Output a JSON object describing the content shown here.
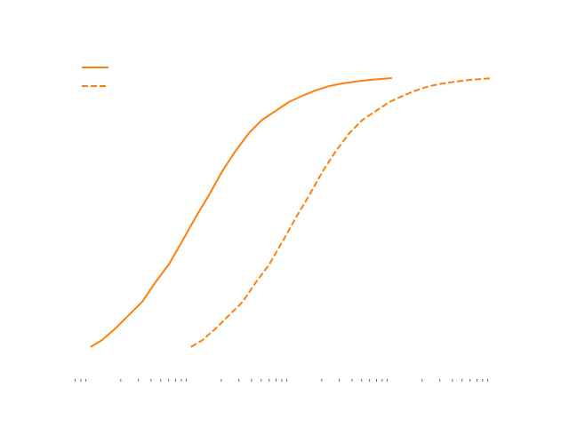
{
  "chart_data": {
    "type": "line",
    "title": "",
    "xlabel": "",
    "ylabel": "",
    "xscale": "log",
    "xlim": [
      0.64,
      15700
    ],
    "ylim": [
      -0.119,
      1.099
    ],
    "grid": false,
    "legend": {
      "placement": "top-left",
      "entries": [
        "",
        ""
      ]
    },
    "series": [
      {
        "style": "solid",
        "color": "#ff7f0e",
        "x": [
          1,
          1.3,
          1.77,
          2.4,
          3.26,
          4.43,
          6.01,
          8.16,
          11.1,
          15.0,
          20.4,
          27.7,
          37.6,
          51.0,
          69.3,
          94.0,
          128,
          173,
          235,
          319,
          434,
          589,
          799,
          1000
        ],
        "y": [
          0,
          0.026,
          0.069,
          0.119,
          0.168,
          0.241,
          0.307,
          0.393,
          0.482,
          0.564,
          0.653,
          0.729,
          0.795,
          0.845,
          0.878,
          0.911,
          0.934,
          0.954,
          0.97,
          0.98,
          0.987,
          0.993,
          0.997,
          1.0
        ]
      },
      {
        "style": "dashed",
        "color": "#ff7f0e",
        "x": [
          10,
          13.0,
          17.7,
          24.0,
          32.6,
          44.3,
          60.1,
          81.6,
          111,
          150,
          204,
          277,
          376,
          510,
          693,
          940,
          1280,
          1730,
          2350,
          3190,
          4340,
          5890,
          7990,
          10000
        ],
        "y": [
          0,
          0.026,
          0.069,
          0.119,
          0.168,
          0.241,
          0.307,
          0.393,
          0.482,
          0.564,
          0.653,
          0.729,
          0.795,
          0.845,
          0.878,
          0.911,
          0.934,
          0.954,
          0.97,
          0.98,
          0.987,
          0.993,
          0.997,
          1.0
        ]
      }
    ]
  }
}
